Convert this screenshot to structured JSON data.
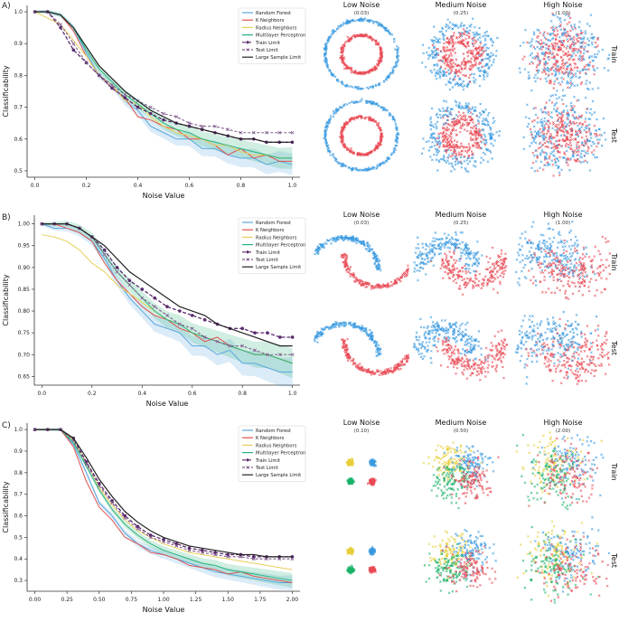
{
  "chart_data": [
    {
      "panel": "A)",
      "type": "line",
      "xlabel": "Noise Value",
      "ylabel": "Classificability",
      "xlim": [
        -0.03,
        1.03
      ],
      "ylim": [
        0.48,
        1.02
      ],
      "xticks": [
        0.0,
        0.2,
        0.4,
        0.6,
        0.8,
        1.0
      ],
      "xtick_labels": [
        "0.0",
        "0.2",
        "0.4",
        "0.6",
        "0.8",
        "1.0"
      ],
      "yticks": [
        0.5,
        0.6,
        0.7,
        0.8,
        0.9,
        1.0
      ],
      "ytick_labels": [
        "0.5",
        "0.6",
        "0.7",
        "0.8",
        "0.9",
        "1.0"
      ],
      "legend": [
        "Random Forest",
        "K Neighbors",
        "Radius Neighbors",
        "Multilayer Perceptron",
        "Train Limit",
        "Test Limit",
        "Large Sample Limit"
      ],
      "x": [
        0.0,
        0.05,
        0.1,
        0.15,
        0.2,
        0.25,
        0.3,
        0.35,
        0.4,
        0.45,
        0.5,
        0.55,
        0.6,
        0.65,
        0.7,
        0.75,
        0.8,
        0.85,
        0.9,
        0.95,
        1.0
      ],
      "series": [
        {
          "name": "Random Forest",
          "values": [
            1.0,
            1.0,
            0.99,
            0.95,
            0.87,
            0.8,
            0.77,
            0.72,
            0.69,
            0.64,
            0.62,
            0.6,
            0.6,
            0.57,
            0.57,
            0.55,
            0.54,
            0.54,
            0.52,
            0.53,
            0.52
          ]
        },
        {
          "name": "K Neighbors",
          "values": [
            1.0,
            1.0,
            0.99,
            0.94,
            0.86,
            0.8,
            0.76,
            0.73,
            0.67,
            0.66,
            0.64,
            0.63,
            0.6,
            0.6,
            0.58,
            0.55,
            0.57,
            0.54,
            0.55,
            0.53,
            0.53
          ]
        },
        {
          "name": "Radius Neighbors",
          "values": [
            1.0,
            0.98,
            0.96,
            0.91,
            0.86,
            0.8,
            0.77,
            0.72,
            0.71,
            0.67,
            0.64,
            0.62,
            0.61,
            0.6,
            0.58,
            0.58,
            0.56,
            0.55,
            0.55,
            0.54,
            0.54
          ]
        },
        {
          "name": "Multilayer Perceptron",
          "values": [
            1.0,
            1.0,
            0.99,
            0.95,
            0.88,
            0.82,
            0.78,
            0.74,
            0.71,
            0.68,
            0.65,
            0.63,
            0.62,
            0.6,
            0.59,
            0.58,
            0.57,
            0.56,
            0.55,
            0.54,
            0.54
          ]
        },
        {
          "name": "Train Limit",
          "values": [
            1.0,
            1.0,
            0.95,
            0.88,
            0.84,
            0.8,
            0.76,
            0.73,
            0.7,
            0.68,
            0.66,
            0.65,
            0.64,
            0.63,
            0.62,
            0.61,
            0.6,
            0.6,
            0.59,
            0.59,
            0.59
          ]
        },
        {
          "name": "Test Limit",
          "values": [
            1.0,
            1.0,
            0.96,
            0.9,
            0.84,
            0.8,
            0.77,
            0.74,
            0.72,
            0.7,
            0.68,
            0.67,
            0.65,
            0.64,
            0.64,
            0.63,
            0.62,
            0.62,
            0.62,
            0.62,
            0.62
          ]
        },
        {
          "name": "Large Sample Limit",
          "values": [
            1.0,
            1.0,
            0.99,
            0.95,
            0.89,
            0.83,
            0.79,
            0.75,
            0.72,
            0.69,
            0.67,
            0.65,
            0.64,
            0.63,
            0.62,
            0.61,
            0.6,
            0.6,
            0.59,
            0.59,
            0.59
          ]
        }
      ],
      "scatter_titles": [
        {
          "title": "Low Noise",
          "value": "(0.03)"
        },
        {
          "title": "Medium Noise",
          "value": "(0.25)"
        },
        {
          "title": "High Noise",
          "value": "(1.00)"
        }
      ],
      "row_labels": [
        "Train",
        "Test"
      ],
      "dataset": "circles"
    },
    {
      "panel": "B)",
      "type": "line",
      "xlabel": "Noise Value",
      "ylabel": "Classificability",
      "xlim": [
        -0.03,
        1.03
      ],
      "ylim": [
        0.63,
        1.02
      ],
      "xticks": [
        0.0,
        0.2,
        0.4,
        0.6,
        0.8,
        1.0
      ],
      "xtick_labels": [
        "0.0",
        "0.2",
        "0.4",
        "0.6",
        "0.8",
        "1.0"
      ],
      "yticks": [
        0.65,
        0.7,
        0.75,
        0.8,
        0.85,
        0.9,
        0.95,
        1.0
      ],
      "ytick_labels": [
        "0.65",
        "0.70",
        "0.75",
        "0.80",
        "0.85",
        "0.90",
        "0.95",
        "1.00"
      ],
      "legend": [
        "Random Forest",
        "K Neighbors",
        "Radius Neighbors",
        "Multilayer Perceptron",
        "Train Limit",
        "Test Limit",
        "Large Sample Limit"
      ],
      "x": [
        0.0,
        0.05,
        0.1,
        0.15,
        0.2,
        0.25,
        0.3,
        0.35,
        0.4,
        0.45,
        0.5,
        0.55,
        0.6,
        0.65,
        0.7,
        0.75,
        0.8,
        0.85,
        0.9,
        0.95,
        1.0
      ],
      "series": [
        {
          "name": "Random Forest",
          "values": [
            1.0,
            0.99,
            0.99,
            0.98,
            0.96,
            0.92,
            0.87,
            0.83,
            0.8,
            0.77,
            0.76,
            0.75,
            0.72,
            0.72,
            0.7,
            0.71,
            0.68,
            0.68,
            0.67,
            0.66,
            0.66
          ]
        },
        {
          "name": "K Neighbors",
          "values": [
            1.0,
            1.0,
            0.99,
            0.98,
            0.96,
            0.91,
            0.87,
            0.84,
            0.81,
            0.79,
            0.78,
            0.76,
            0.75,
            0.73,
            0.74,
            0.72,
            0.71,
            0.7,
            0.7,
            0.69,
            0.68
          ]
        },
        {
          "name": "Radius Neighbors",
          "values": [
            0.975,
            0.97,
            0.96,
            0.94,
            0.91,
            0.89,
            0.86,
            0.84,
            0.82,
            0.8,
            0.78,
            0.77,
            0.75,
            0.74,
            0.73,
            0.72,
            0.71,
            0.7,
            0.7,
            0.69,
            0.68
          ]
        },
        {
          "name": "Multilayer Perceptron",
          "values": [
            1.0,
            1.0,
            1.0,
            0.99,
            0.97,
            0.93,
            0.89,
            0.86,
            0.83,
            0.8,
            0.78,
            0.77,
            0.75,
            0.74,
            0.73,
            0.72,
            0.71,
            0.7,
            0.7,
            0.69,
            0.68
          ]
        },
        {
          "name": "Train Limit",
          "values": [
            1.0,
            1.0,
            1.0,
            0.99,
            0.97,
            0.94,
            0.9,
            0.87,
            0.85,
            0.83,
            0.81,
            0.8,
            0.79,
            0.78,
            0.77,
            0.76,
            0.76,
            0.75,
            0.75,
            0.74,
            0.74
          ]
        },
        {
          "name": "Test Limit",
          "values": [
            1.0,
            1.0,
            1.0,
            0.99,
            0.97,
            0.93,
            0.89,
            0.86,
            0.83,
            0.81,
            0.79,
            0.77,
            0.76,
            0.74,
            0.73,
            0.72,
            0.72,
            0.71,
            0.7,
            0.7,
            0.7
          ]
        },
        {
          "name": "Large Sample Limit",
          "values": [
            1.0,
            1.0,
            1.0,
            0.99,
            0.97,
            0.95,
            0.92,
            0.89,
            0.87,
            0.85,
            0.83,
            0.81,
            0.8,
            0.79,
            0.77,
            0.76,
            0.75,
            0.74,
            0.73,
            0.72,
            0.72
          ]
        }
      ],
      "scatter_titles": [
        {
          "title": "Low Noise",
          "value": "(0.03)"
        },
        {
          "title": "Medium Noise",
          "value": "(0.25)"
        },
        {
          "title": "High Noise",
          "value": "(1.00)"
        }
      ],
      "row_labels": [
        "Train",
        "Test"
      ],
      "dataset": "moons"
    },
    {
      "panel": "C)",
      "type": "line",
      "xlabel": "Noise Value",
      "ylabel": "Classificability",
      "xlim": [
        -0.06,
        2.06
      ],
      "ylim": [
        0.25,
        1.03
      ],
      "xticks": [
        0.0,
        0.25,
        0.5,
        0.75,
        1.0,
        1.25,
        1.5,
        1.75,
        2.0
      ],
      "xtick_labels": [
        "0.00",
        "0.25",
        "0.50",
        "0.75",
        "1.00",
        "1.25",
        "1.50",
        "1.75",
        "2.00"
      ],
      "yticks": [
        0.3,
        0.4,
        0.5,
        0.6,
        0.7,
        0.8,
        0.9,
        1.0
      ],
      "ytick_labels": [
        "0.3",
        "0.4",
        "0.5",
        "0.6",
        "0.7",
        "0.8",
        "0.9",
        "1.0"
      ],
      "legend": [
        "Random Forest",
        "K Neighbors",
        "Radius Neighbors",
        "Multilayer Perceptron",
        "Train Limit",
        "Test Limit",
        "Large Sample Limit"
      ],
      "x": [
        0.0,
        0.1,
        0.2,
        0.3,
        0.4,
        0.5,
        0.6,
        0.7,
        0.8,
        0.9,
        1.0,
        1.1,
        1.2,
        1.3,
        1.4,
        1.5,
        1.6,
        1.7,
        1.8,
        1.9,
        2.0
      ],
      "series": [
        {
          "name": "Random Forest",
          "values": [
            1.0,
            1.0,
            1.0,
            0.93,
            0.8,
            0.66,
            0.6,
            0.52,
            0.47,
            0.44,
            0.42,
            0.4,
            0.38,
            0.36,
            0.34,
            0.33,
            0.32,
            0.31,
            0.3,
            0.29,
            0.29
          ]
        },
        {
          "name": "K Neighbors",
          "values": [
            1.0,
            1.0,
            1.0,
            0.92,
            0.76,
            0.64,
            0.58,
            0.5,
            0.47,
            0.43,
            0.42,
            0.4,
            0.37,
            0.36,
            0.35,
            0.33,
            0.34,
            0.32,
            0.31,
            0.3,
            0.29
          ]
        },
        {
          "name": "Radius Neighbors",
          "values": [
            1.0,
            1.0,
            1.0,
            0.95,
            0.85,
            0.73,
            0.65,
            0.58,
            0.53,
            0.5,
            0.47,
            0.45,
            0.43,
            0.42,
            0.41,
            0.4,
            0.39,
            0.38,
            0.37,
            0.36,
            0.35
          ]
        },
        {
          "name": "Multilayer Perceptron",
          "values": [
            1.0,
            1.0,
            1.0,
            0.94,
            0.83,
            0.72,
            0.63,
            0.56,
            0.51,
            0.47,
            0.44,
            0.42,
            0.4,
            0.38,
            0.37,
            0.35,
            0.34,
            0.33,
            0.32,
            0.31,
            0.3
          ]
        },
        {
          "name": "Train Limit",
          "values": [
            1.0,
            1.0,
            1.0,
            0.96,
            0.85,
            0.75,
            0.67,
            0.6,
            0.55,
            0.51,
            0.49,
            0.47,
            0.45,
            0.44,
            0.43,
            0.42,
            0.42,
            0.41,
            0.41,
            0.41,
            0.41
          ]
        },
        {
          "name": "Test Limit",
          "values": [
            1.0,
            1.0,
            1.0,
            0.95,
            0.84,
            0.74,
            0.66,
            0.59,
            0.54,
            0.5,
            0.48,
            0.46,
            0.44,
            0.43,
            0.42,
            0.41,
            0.41,
            0.4,
            0.4,
            0.4,
            0.4
          ]
        },
        {
          "name": "Large Sample Limit",
          "values": [
            1.0,
            1.0,
            1.0,
            0.96,
            0.87,
            0.77,
            0.69,
            0.62,
            0.57,
            0.53,
            0.5,
            0.48,
            0.46,
            0.45,
            0.44,
            0.43,
            0.42,
            0.42,
            0.41,
            0.41,
            0.41
          ]
        }
      ],
      "scatter_titles": [
        {
          "title": "Low Noise",
          "value": "(0.10)"
        },
        {
          "title": "Medium Noise",
          "value": "(0.50)"
        },
        {
          "title": "High Noise",
          "value": "(2.00)"
        }
      ],
      "row_labels": [
        "Train",
        "Test"
      ],
      "dataset": "blobs"
    }
  ],
  "series_colors": {
    "Random Forest": "#5aa7dd",
    "K Neighbors": "#e0514f",
    "Radius Neighbors": "#e8cf5a",
    "Multilayer Perceptron": "#27b37a",
    "Train Limit": "#5b2c6f",
    "Test Limit": "#7f5a8c",
    "Large Sample Limit": "#222222"
  },
  "class_colors": {
    "class_1": "#3a9ae0",
    "class_2": "#e84a55",
    "class_3": "#e6cf3a",
    "class_4": "#1bb26a"
  }
}
